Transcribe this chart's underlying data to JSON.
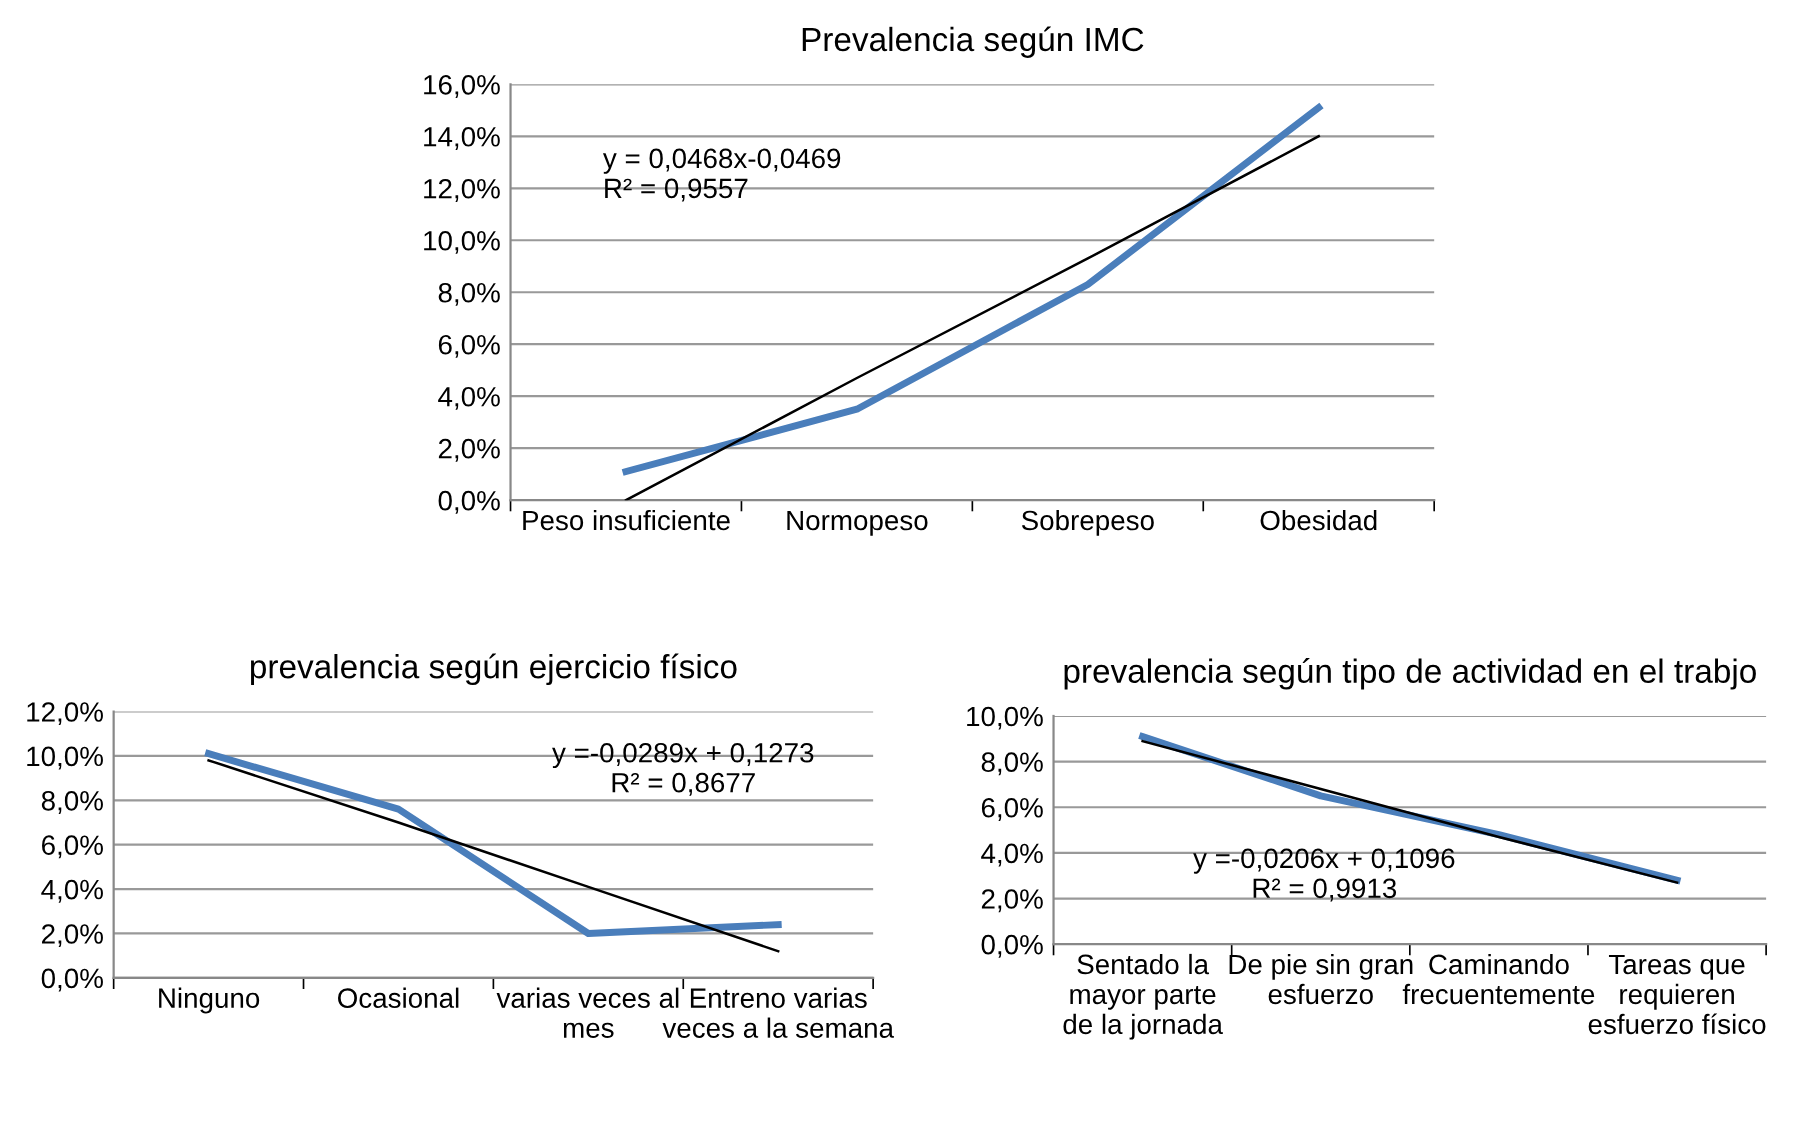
{
  "chart_data": [
    {
      "type": "line",
      "title": "Prevalencia según IMC",
      "categories": [
        "Peso insuficiente",
        "Normopeso",
        "Sobrepeso",
        "Obesidad"
      ],
      "series": [
        {
          "color": "#4a7ebb",
          "values": [
            1.1,
            3.5,
            8.3,
            15.1
          ]
        },
        {
          "type": "line",
          "color": "#000000",
          "values": [
            0.0,
            4.7,
            9.3,
            14.0
          ]
        }
      ],
      "ylim": [
        0,
        16
      ],
      "yticks": [
        {
          "value": 0,
          "label": "0,0%"
        },
        {
          "value": 2,
          "label": "2,0%"
        },
        {
          "value": 4,
          "label": "4,0%"
        },
        {
          "value": 6,
          "label": "6,0%"
        },
        {
          "value": 8,
          "label": "8,0%"
        },
        {
          "value": 10,
          "label": "10,0%"
        },
        {
          "value": 12,
          "label": "12,0%"
        },
        {
          "value": 14,
          "label": "14,0%"
        },
        {
          "value": 16,
          "label": "16,0%"
        }
      ],
      "grid": "y",
      "marker": "none",
      "line_style": "solid",
      "annotations": [
        "y = 0,0468x-0,0469\nR² = 0,9557"
      ]
    },
    {
      "type": "line",
      "title": "prevalencia según ejercicio físico",
      "categories": [
        "Ninguno",
        "Ocasional",
        "varias veces al\nmes",
        "Entreno varias\nveces a la semana"
      ],
      "series": [
        {
          "color": "#4a7ebb",
          "values": [
            10.1,
            7.6,
            2.0,
            2.4
          ]
        },
        {
          "type": "line",
          "color": "#000000",
          "values": [
            9.8,
            7.0,
            4.1,
            1.2
          ]
        }
      ],
      "ylim": [
        0,
        12
      ],
      "yticks": [
        {
          "value": 0,
          "label": "0,0%"
        },
        {
          "value": 2,
          "label": "2,0%"
        },
        {
          "value": 4,
          "label": "4,0%"
        },
        {
          "value": 6,
          "label": "6,0%"
        },
        {
          "value": 8,
          "label": "8,0%"
        },
        {
          "value": 10,
          "label": "10,0%"
        },
        {
          "value": 12,
          "label": "12,0%"
        }
      ],
      "grid": "y",
      "marker": "none",
      "line_style": "solid",
      "annotations": [
        "y =-0,0289x + 0,1273\nR² = 0,8677"
      ]
    },
    {
      "type": "line",
      "title": "prevalencia según tipo de actividad en el trabjo",
      "categories": [
        "Sentado la\nmayor parte\nde la jornada",
        "De pie sin gran\nesfuerzo",
        "Caminando\nfrecuentemente",
        "Tareas que\nrequieren\nesfuerzo físico"
      ],
      "series": [
        {
          "color": "#4a7ebb",
          "values": [
            9.1,
            6.5,
            4.8,
            2.8
          ]
        },
        {
          "type": "line",
          "color": "#000000",
          "values": [
            8.9,
            6.8,
            4.7,
            2.7
          ]
        }
      ],
      "ylim": [
        0,
        10
      ],
      "yticks": [
        {
          "value": 0,
          "label": "0,0%"
        },
        {
          "value": 2,
          "label": "2,0%"
        },
        {
          "value": 4,
          "label": "4,0%"
        },
        {
          "value": 6,
          "label": "6,0%"
        },
        {
          "value": 8,
          "label": "8,0%"
        },
        {
          "value": 10,
          "label": "10,0%"
        }
      ],
      "grid": "y",
      "marker": "none",
      "line_style": "solid",
      "annotations": [
        "y =-0,0206x + 0,1096\nR² = 0,9913"
      ]
    }
  ]
}
